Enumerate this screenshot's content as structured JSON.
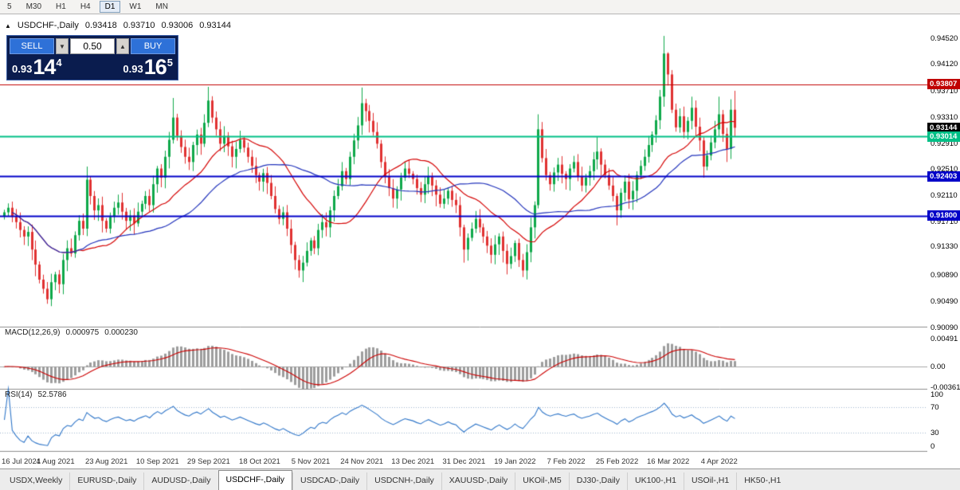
{
  "toolbar": {
    "timeframes": [
      {
        "label": "5",
        "active": false
      },
      {
        "label": "M30",
        "active": false
      },
      {
        "label": "H1",
        "active": false
      },
      {
        "label": "H4",
        "active": false
      },
      {
        "label": "D1",
        "active": true
      },
      {
        "label": "W1",
        "active": false
      },
      {
        "label": "MN",
        "active": false
      }
    ]
  },
  "symbol_header": {
    "arrow": "▲",
    "name": "USDCHF-,Daily",
    "open": "0.93418",
    "high": "0.93710",
    "low": "0.93006",
    "close": "0.93144"
  },
  "trade_panel": {
    "sell_label": "SELL",
    "buy_label": "BUY",
    "lot_value": "0.50",
    "sell_quote": {
      "prefix": "0.93",
      "big": "14",
      "sup": "4"
    },
    "buy_quote": {
      "prefix": "0.93",
      "big": "16",
      "sup": "5"
    }
  },
  "price_axis": {
    "labels": [
      "0.94520",
      "0.94120",
      "0.93710",
      "0.93310",
      "0.92910",
      "0.92510",
      "0.92110",
      "0.91710",
      "0.91330",
      "0.90890",
      "0.90490",
      "0.90090"
    ]
  },
  "badges": [
    {
      "text": "0.93807",
      "price": 0.93807,
      "bg": "#c00000",
      "fg": "#ffffff"
    },
    {
      "text": "0.93144",
      "price": 0.93144,
      "bg": "#000000",
      "fg": "#ffffff"
    },
    {
      "text": "0.93014",
      "price": 0.93014,
      "bg": "#00bf86",
      "fg": "#ffffff"
    },
    {
      "text": "0.92403",
      "price": 0.92403,
      "bg": "#0000c8",
      "fg": "#ffffff"
    },
    {
      "text": "0.91800",
      "price": 0.918,
      "bg": "#0000c8",
      "fg": "#ffffff"
    }
  ],
  "macd_panel": {
    "title": "MACD(12,26,9)",
    "value1": "0.000975",
    "value2": "0.000230",
    "axis_labels": [
      "0.00491",
      "0.00",
      "-0.00361"
    ],
    "axis_values": [
      0.00491,
      0,
      -0.00361
    ]
  },
  "rsi_panel": {
    "title": "RSI(14)",
    "value": "52.5786",
    "axis_labels": [
      "100",
      "70",
      "30",
      "0"
    ],
    "axis_values": [
      100,
      70,
      30,
      0
    ],
    "levels": [
      70,
      30
    ]
  },
  "date_axis": {
    "labels": [
      "16 Jul 2021",
      "4 Aug 2021",
      "23 Aug 2021",
      "10 Sep 2021",
      "29 Sep 2021",
      "18 Oct 2021",
      "5 Nov 2021",
      "24 Nov 2021",
      "13 Dec 2021",
      "31 Dec 2021",
      "19 Jan 2022",
      "7 Feb 2022",
      "25 Feb 2022",
      "16 Mar 2022",
      "4 Apr 2022"
    ],
    "step": 13
  },
  "tabs": [
    {
      "label": "USDX,Weekly",
      "active": false
    },
    {
      "label": "EURUSD-,Daily",
      "active": false
    },
    {
      "label": "AUDUSD-,Daily",
      "active": false
    },
    {
      "label": "USDCHF-,Daily",
      "active": true
    },
    {
      "label": "USDCAD-,Daily",
      "active": false
    },
    {
      "label": "USDCNH-,Daily",
      "active": false
    },
    {
      "label": "XAUUSD-,Daily",
      "active": false
    },
    {
      "label": "UKOil-,M5",
      "active": false
    },
    {
      "label": "DJ30-,Daily",
      "active": false
    },
    {
      "label": "UK100-,H1",
      "active": false
    },
    {
      "label": "USOil-,H1",
      "active": false
    },
    {
      "label": "HK50-,H1",
      "active": false
    }
  ],
  "chart_data": {
    "type": "candlestick",
    "symbol": "USDCHF-,Daily",
    "last_ohlc": {
      "open": 0.93418,
      "high": 0.9371,
      "low": 0.93006,
      "close": 0.93144
    },
    "ylim": [
      0.901,
      0.9488
    ],
    "up_color": "#0ea84a",
    "down_color": "#e03131",
    "ma_red": {
      "type": "sma",
      "period": 20,
      "color": "#d40000"
    },
    "ma_blue": {
      "type": "sma",
      "period": 40,
      "color": "#2233bb"
    },
    "levels": [
      {
        "price": 0.93807,
        "color": "#c00000",
        "width": 1
      },
      {
        "price": 0.93014,
        "color": "#00bf86",
        "width": 2
      },
      {
        "price": 0.92403,
        "color": "#0000c8",
        "width": 2
      },
      {
        "price": 0.918,
        "color": "#0000c8",
        "width": 2
      }
    ],
    "current_price": 0.93144,
    "macd": {
      "params": [
        12,
        26,
        9
      ],
      "ylim": [
        -0.0039,
        0.007
      ],
      "last_main": 0.000975,
      "last_signal": 0.00023,
      "hist_color": "#9d9d9d",
      "signal_color": "#cc0000"
    },
    "rsi": {
      "period": 14,
      "last": 52.5786,
      "ylim": [
        0,
        100
      ],
      "color": "#2e75c8"
    },
    "x_label_step": 13,
    "closes": [
      0.9185,
      0.9192,
      0.9178,
      0.917,
      0.9158,
      0.9148,
      0.9155,
      0.9128,
      0.9105,
      0.9082,
      0.9068,
      0.9052,
      0.9078,
      0.909,
      0.9075,
      0.9112,
      0.913,
      0.9122,
      0.915,
      0.9172,
      0.916,
      0.9235,
      0.921,
      0.9188,
      0.9196,
      0.9172,
      0.916,
      0.9178,
      0.9192,
      0.92,
      0.9186,
      0.9172,
      0.918,
      0.9168,
      0.9186,
      0.9198,
      0.921,
      0.9196,
      0.9228,
      0.9252,
      0.9238,
      0.927,
      0.9296,
      0.933,
      0.9302,
      0.9285,
      0.927,
      0.9262,
      0.9288,
      0.9304,
      0.929,
      0.9322,
      0.9356,
      0.933,
      0.9312,
      0.929,
      0.9302,
      0.9286,
      0.927,
      0.9282,
      0.9296,
      0.9284,
      0.927,
      0.9256,
      0.9242,
      0.9232,
      0.9245,
      0.923,
      0.921,
      0.919,
      0.9175,
      0.9185,
      0.916,
      0.9135,
      0.9112,
      0.9096,
      0.9108,
      0.9126,
      0.9142,
      0.913,
      0.9158,
      0.917,
      0.9162,
      0.9188,
      0.921,
      0.9225,
      0.9248,
      0.9236,
      0.927,
      0.9295,
      0.9318,
      0.9352,
      0.934,
      0.9325,
      0.9308,
      0.929,
      0.9262,
      0.924,
      0.9222,
      0.9206,
      0.922,
      0.9238,
      0.9252,
      0.9244,
      0.9236,
      0.9222,
      0.9212,
      0.9228,
      0.924,
      0.9226,
      0.9212,
      0.9198,
      0.9206,
      0.9218,
      0.9204,
      0.9196,
      0.9162,
      0.9128,
      0.9146,
      0.916,
      0.9175,
      0.9162,
      0.9148,
      0.9134,
      0.912,
      0.9136,
      0.9148,
      0.9126,
      0.9106,
      0.9118,
      0.9138,
      0.9112,
      0.9096,
      0.9124,
      0.9162,
      0.9196,
      0.9312,
      0.9268,
      0.9242,
      0.9228,
      0.9246,
      0.9258,
      0.9244,
      0.9236,
      0.9252,
      0.9262,
      0.924,
      0.9226,
      0.9238,
      0.9248,
      0.9266,
      0.9278,
      0.9258,
      0.9242,
      0.9226,
      0.921,
      0.9188,
      0.9215,
      0.9232,
      0.9205,
      0.9218,
      0.9242,
      0.9256,
      0.927,
      0.9288,
      0.9304,
      0.9326,
      0.9362,
      0.9428,
      0.9396,
      0.9342,
      0.9315,
      0.9332,
      0.9308,
      0.9325,
      0.9345,
      0.9316,
      0.9295,
      0.9255,
      0.9272,
      0.9292,
      0.9312,
      0.9335,
      0.9305,
      0.9282,
      0.9342,
      0.93144
    ],
    "spikes": {
      "11": {
        "low": 0.9045
      },
      "21": {
        "high": 0.9255
      },
      "43": {
        "high": 0.936
      },
      "52": {
        "high": 0.9377
      },
      "75": {
        "low": 0.9085
      },
      "91": {
        "high": 0.9376
      },
      "117": {
        "low": 0.9108
      },
      "128": {
        "low": 0.909
      },
      "132": {
        "low": 0.9086
      },
      "136": {
        "high": 0.9335
      },
      "151": {
        "high": 0.93
      },
      "156": {
        "low": 0.9165
      },
      "168": {
        "high": 0.9455
      },
      "169": {
        "high": 0.943
      },
      "175": {
        "high": 0.9362
      },
      "178": {
        "low": 0.9238
      },
      "182": {
        "high": 0.9362
      },
      "184": {
        "low": 0.9262
      },
      "185": {
        "high": 0.9358
      },
      "186": {
        "high": 0.9371,
        "low": 0.9301
      }
    }
  }
}
